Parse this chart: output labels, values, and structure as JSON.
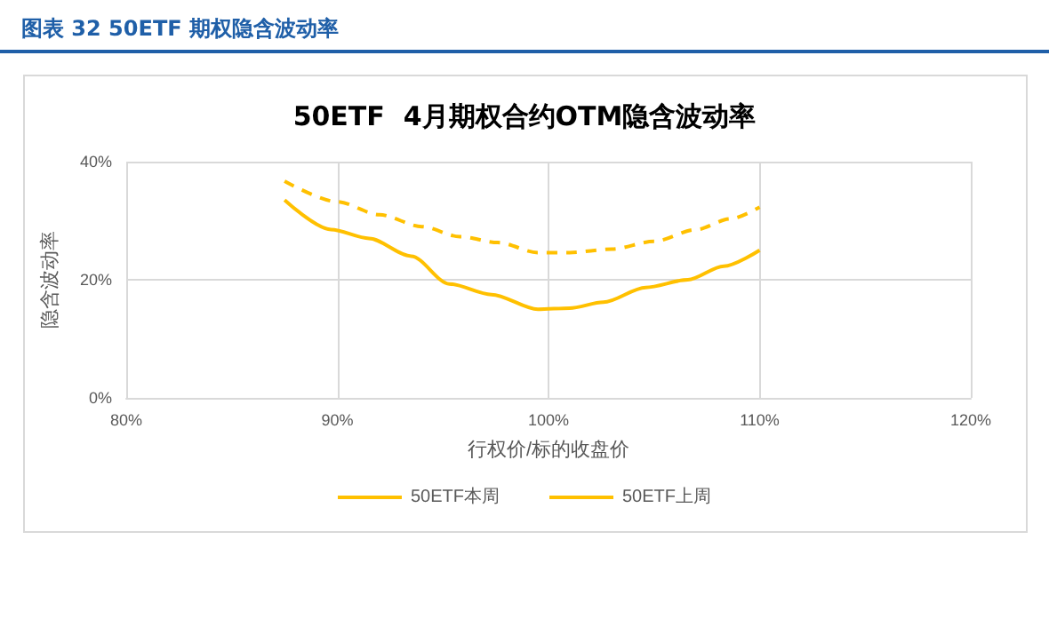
{
  "chart_data": {
    "type": "line",
    "title": "50ETF  4月期权合约OTM隐含波动率",
    "xlabel": "行权价/标的收盘价",
    "ylabel": "隐含波动率",
    "annotations": [
      "图表 32  50ETF 期权隐含波动率"
    ],
    "series": [
      {
        "name": "50ETF本周",
        "color": "#ffc000",
        "line_style": "solid",
        "x": [
          87.5,
          89.7,
          91.5,
          93.5,
          95.3,
          97.3,
          99.5,
          101,
          102.6,
          104.6,
          106.6,
          108.3,
          110
        ],
        "values": [
          33.5,
          28.5,
          27,
          24,
          19.3,
          17.5,
          15,
          15.2,
          16.2,
          18.7,
          20,
          22.3,
          25
        ]
      },
      {
        "name": "50ETF上周",
        "color": "#ffc000",
        "line_style": "dashed",
        "x": [
          87.5,
          90,
          92,
          94,
          95.8,
          97.6,
          99.5,
          101,
          103,
          105,
          107,
          108.6,
          110
        ],
        "values": [
          36.7,
          33.2,
          31,
          29,
          27.3,
          26.3,
          24.6,
          24.6,
          25.2,
          26.5,
          28.5,
          30.3,
          32.3
        ]
      }
    ],
    "xlim": [
      80,
      120
    ],
    "xticks": [
      {
        "value": 80,
        "label": "80%"
      },
      {
        "value": 90,
        "label": "90%"
      },
      {
        "value": 100,
        "label": "100%"
      },
      {
        "value": 110,
        "label": "110%"
      },
      {
        "value": 120,
        "label": "120%"
      }
    ],
    "ylim": [
      0,
      40
    ],
    "yticks": [
      {
        "value": 0,
        "label": "0%"
      },
      {
        "value": 20,
        "label": "20%"
      },
      {
        "value": 40,
        "label": "40%"
      }
    ],
    "grid": true,
    "legend": "bottom",
    "marker": "none"
  }
}
